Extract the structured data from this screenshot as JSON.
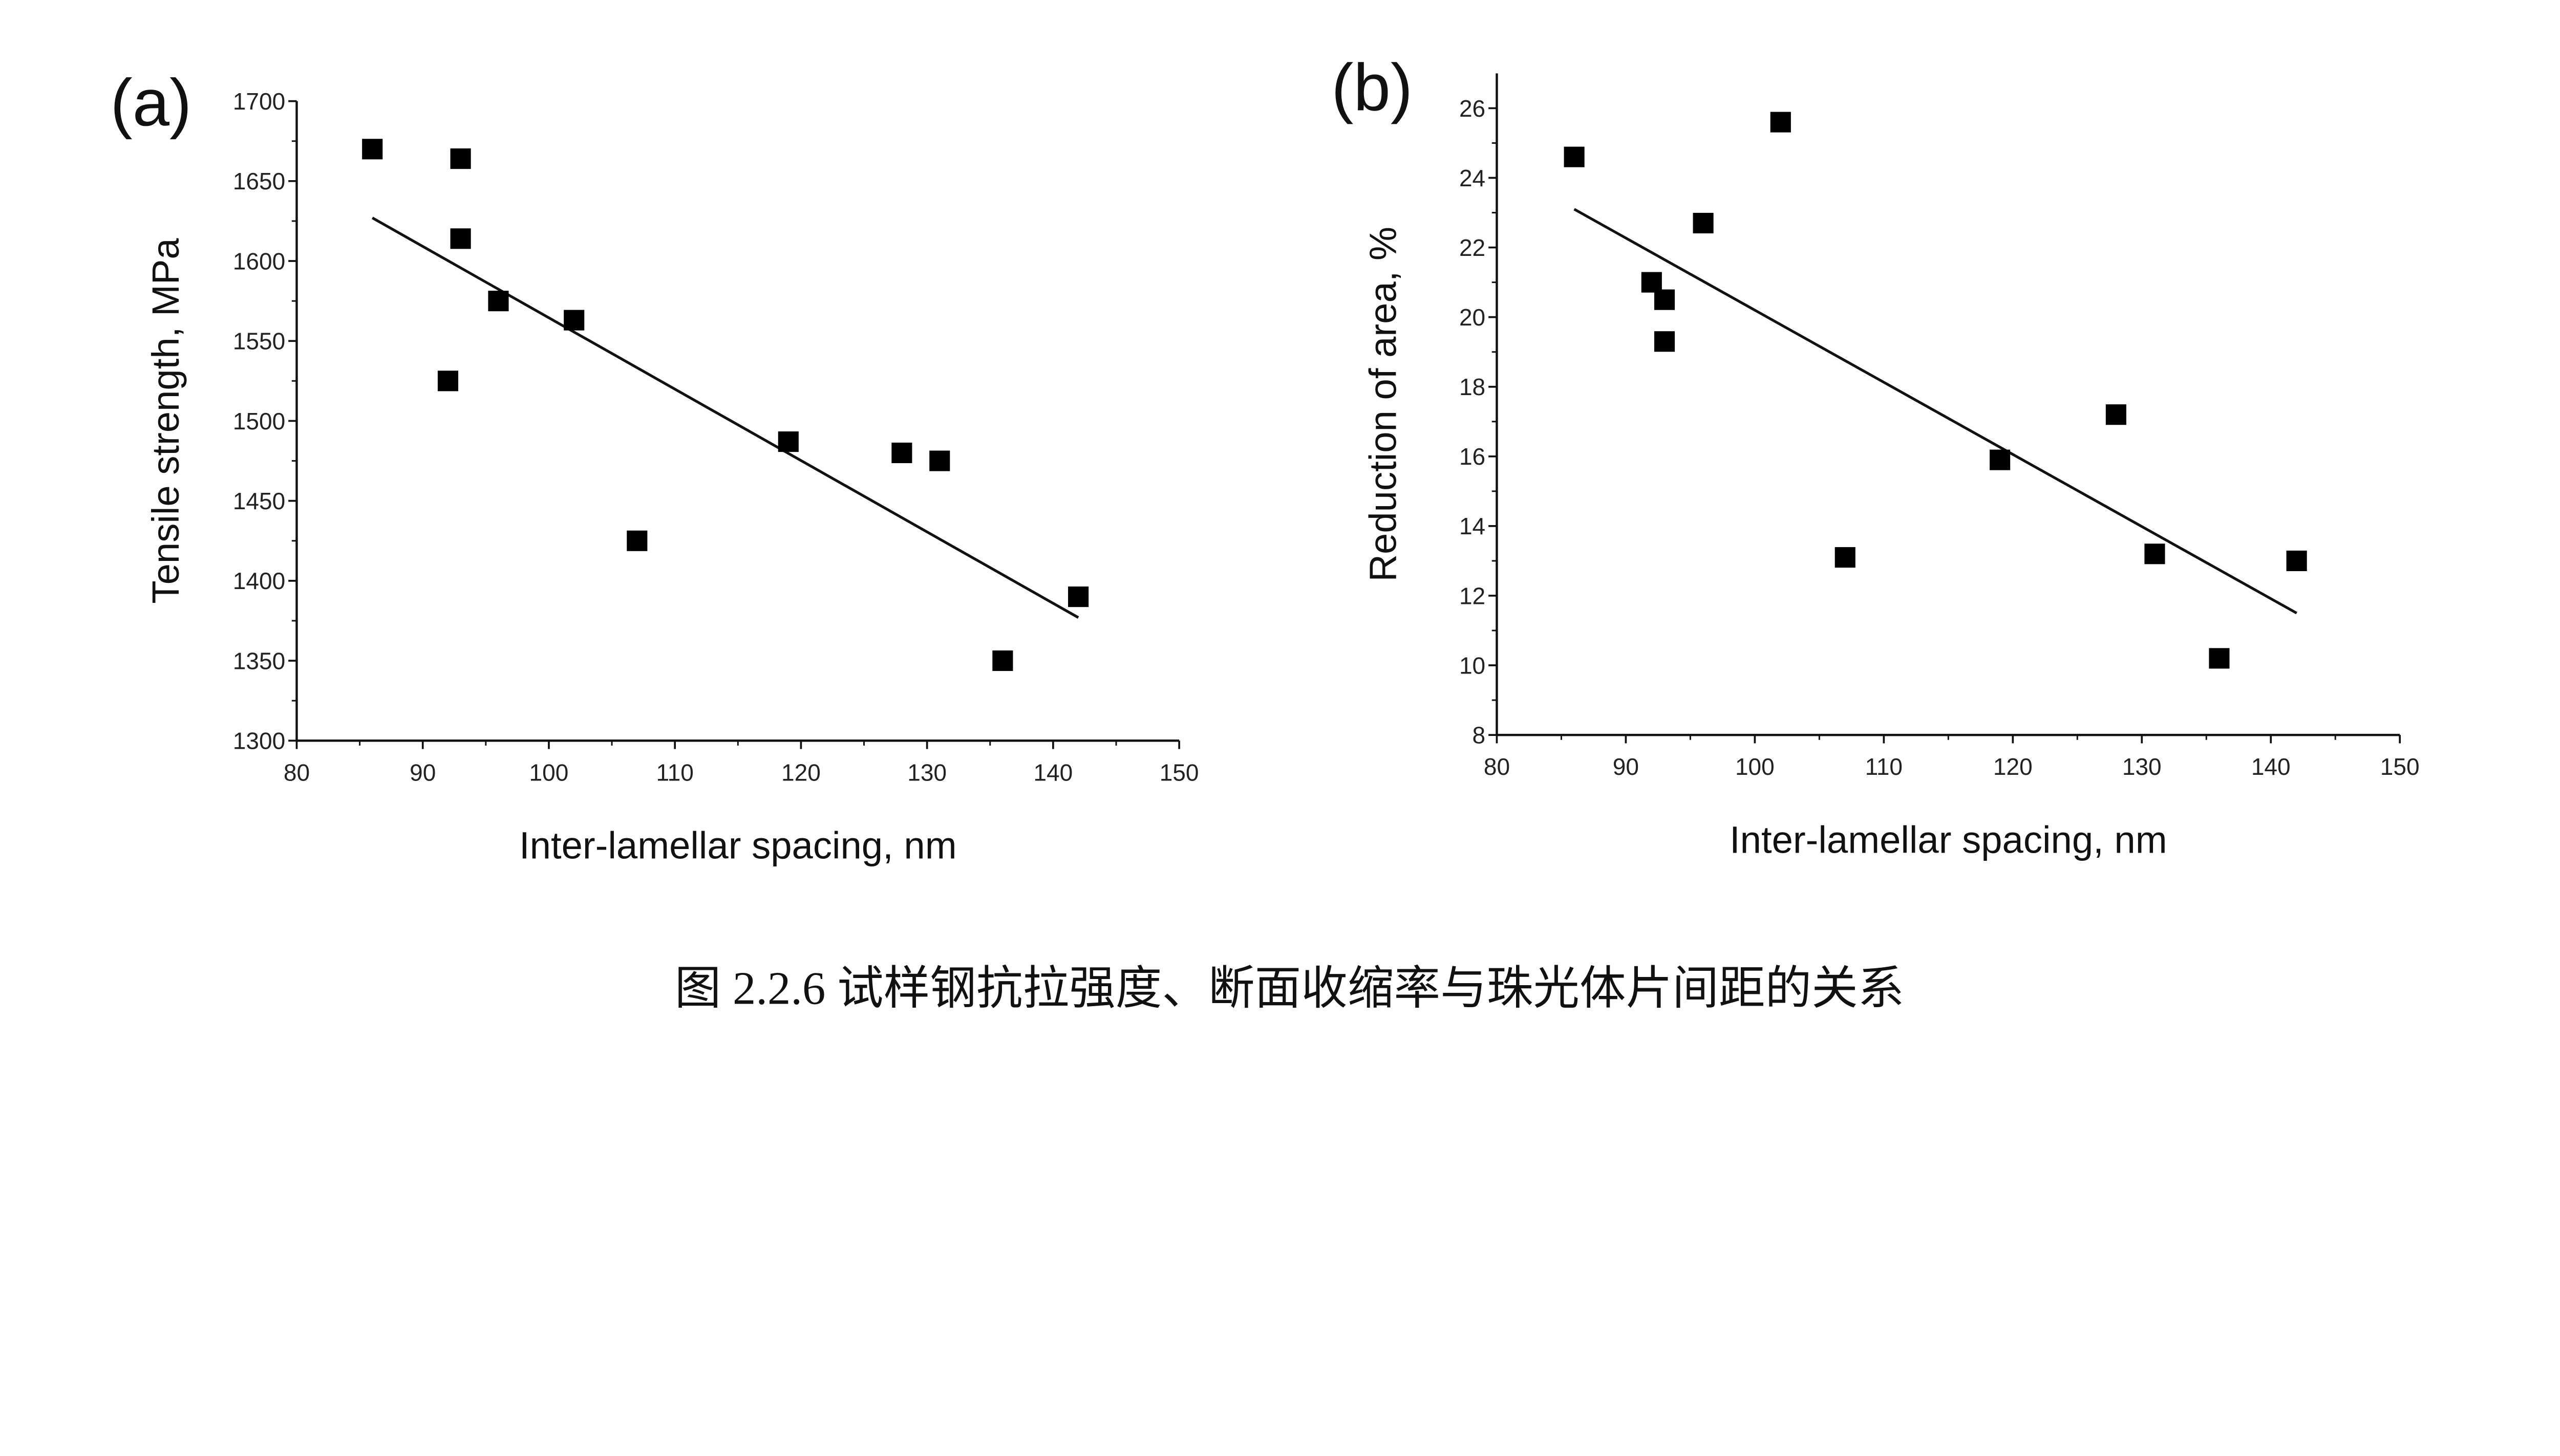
{
  "caption": "图 2.2.6 试样钢抗拉强度、断面收缩率与珠光体片间距的关系",
  "chart_data": [
    {
      "type": "scatter",
      "panel_label": "(a)",
      "xlabel": "Inter-lamellar spacing, nm",
      "ylabel": "Tensile strength, MPa",
      "xlim": [
        80,
        150
      ],
      "ylim": [
        1300,
        1700
      ],
      "xticks": [
        80,
        90,
        100,
        110,
        120,
        130,
        140,
        150
      ],
      "yticks": [
        1300,
        1350,
        1400,
        1450,
        1500,
        1550,
        1600,
        1650,
        1700
      ],
      "grid": false,
      "points": [
        [
          86,
          1670
        ],
        [
          93,
          1664
        ],
        [
          93,
          1614
        ],
        [
          96,
          1575
        ],
        [
          102,
          1563
        ],
        [
          92,
          1525
        ],
        [
          107,
          1425
        ],
        [
          119,
          1487
        ],
        [
          128,
          1480
        ],
        [
          131,
          1475
        ],
        [
          136,
          1350
        ],
        [
          142,
          1390
        ]
      ],
      "fit_line": [
        [
          86,
          1627
        ],
        [
          142,
          1377
        ]
      ]
    },
    {
      "type": "scatter",
      "panel_label": "(b)",
      "xlabel": "Inter-lamellar spacing, nm",
      "ylabel": "Reduction of area, %",
      "xlim": [
        80,
        150
      ],
      "ylim": [
        8,
        27
      ],
      "xticks": [
        80,
        90,
        100,
        110,
        120,
        130,
        140,
        150
      ],
      "yticks": [
        8,
        10,
        12,
        14,
        16,
        18,
        20,
        22,
        24,
        26
      ],
      "grid": false,
      "points": [
        [
          86,
          24.6
        ],
        [
          102,
          25.6
        ],
        [
          96,
          22.7
        ],
        [
          92,
          21.0
        ],
        [
          93,
          20.5
        ],
        [
          93,
          19.3
        ],
        [
          119,
          15.9
        ],
        [
          128,
          17.2
        ],
        [
          107,
          13.1
        ],
        [
          131,
          13.2
        ],
        [
          142,
          13.0
        ],
        [
          136,
          10.2
        ]
      ],
      "fit_line": [
        [
          86,
          23.1
        ],
        [
          142,
          11.5
        ]
      ]
    }
  ]
}
